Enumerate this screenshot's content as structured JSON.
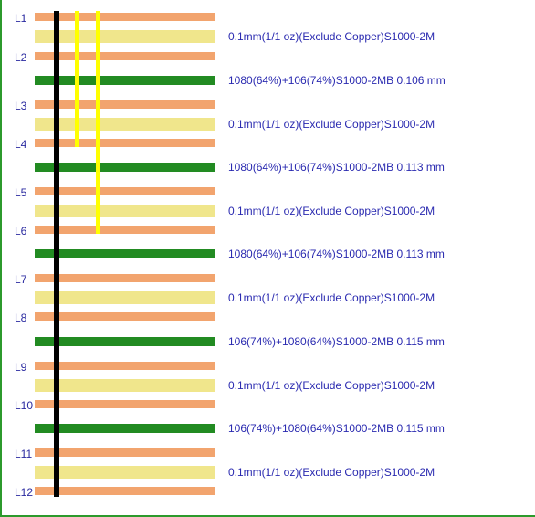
{
  "layers": [
    "L1",
    "L2",
    "L3",
    "L4",
    "L5",
    "L6",
    "L7",
    "L8",
    "L9",
    "L10",
    "L11",
    "L12"
  ],
  "dielectrics": [
    {
      "kind": "core",
      "label": "0.1mm(1/1 oz)(Exclude Copper)S1000-2M"
    },
    {
      "kind": "prepreg",
      "label": "1080(64%)+106(74%)S1000-2MB   0.106 mm"
    },
    {
      "kind": "core",
      "label": "0.1mm(1/1 oz)(Exclude Copper)S1000-2M"
    },
    {
      "kind": "prepreg",
      "label": "1080(64%)+106(74%)S1000-2MB   0.113 mm"
    },
    {
      "kind": "core",
      "label": "0.1mm(1/1 oz)(Exclude Copper)S1000-2M"
    },
    {
      "kind": "prepreg",
      "label": "1080(64%)+106(74%)S1000-2MB   0.113 mm"
    },
    {
      "kind": "core",
      "label": "0.1mm(1/1 oz)(Exclude Copper)S1000-2M"
    },
    {
      "kind": "prepreg",
      "label": "106(74%)+1080(64%)S1000-2MB   0.115 mm"
    },
    {
      "kind": "core",
      "label": "0.1mm(1/1 oz)(Exclude Copper)S1000-2M"
    },
    {
      "kind": "prepreg",
      "label": "106(74%)+1080(64%)S1000-2MB   0.115 mm"
    },
    {
      "kind": "core",
      "label": "0.1mm(1/1 oz)(Exclude Copper)S1000-2M"
    }
  ],
  "vias": [
    {
      "name": "through-via",
      "from": "L1",
      "to": "L12",
      "color": "#000000"
    },
    {
      "name": "blind-via-l1-l4",
      "from": "L1",
      "to": "L4",
      "color": "#ffff00"
    },
    {
      "name": "blind-via-l1-l6",
      "from": "L1",
      "to": "L6",
      "color": "#ffff00"
    }
  ],
  "colors": {
    "copper": "#f2a46e",
    "core": "#f0e68c",
    "prepreg": "#228b22",
    "label": "#2a2ab0"
  }
}
